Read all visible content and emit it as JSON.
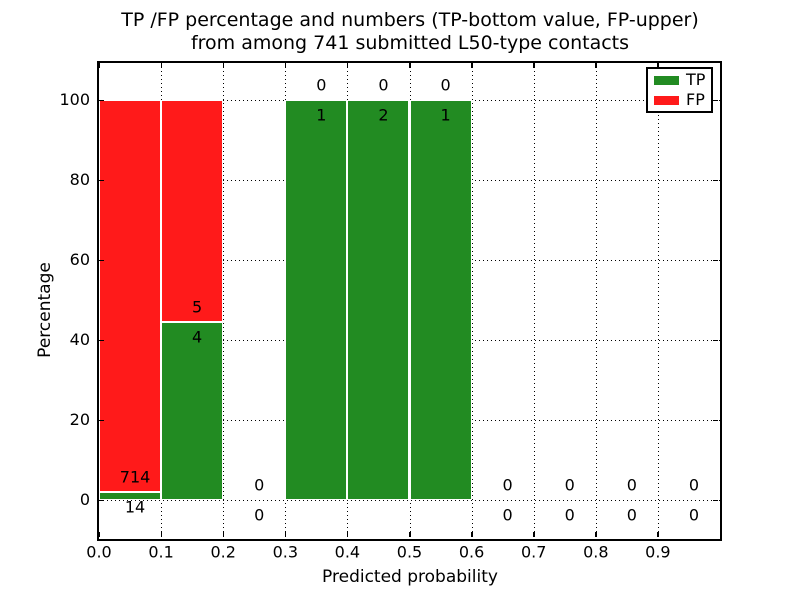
{
  "chart_data": {
    "type": "bar",
    "stacked": true,
    "title_line1": "TP /FP percentage and numbers (TP-bottom value, FP-upper)",
    "title_line2": "from among 741 submitted L50-type contacts",
    "xlabel": "Predicted probability",
    "ylabel": "Percentage",
    "xlim": [
      0.0,
      1.0
    ],
    "ylim": [
      -9.5,
      109.25
    ],
    "xticks": [
      "0.0",
      "0.1",
      "0.2",
      "0.3",
      "0.4",
      "0.5",
      "0.6",
      "0.7",
      "0.8",
      "0.9"
    ],
    "yticks": [
      0,
      20,
      40,
      60,
      80,
      100
    ],
    "grid": "dotted",
    "legend_position": "upper right",
    "total_contacts": 741,
    "bins": [
      {
        "range": [
          0.0,
          0.1
        ],
        "tp": 14,
        "fp": 714,
        "tp_pct": 1.92,
        "fp_pct": 98.08
      },
      {
        "range": [
          0.1,
          0.2
        ],
        "tp": 4,
        "fp": 5,
        "tp_pct": 44.44,
        "fp_pct": 55.56
      },
      {
        "range": [
          0.2,
          0.3
        ],
        "tp": 0,
        "fp": 0,
        "tp_pct": 0,
        "fp_pct": 0
      },
      {
        "range": [
          0.3,
          0.4
        ],
        "tp": 1,
        "fp": 0,
        "tp_pct": 100,
        "fp_pct": 0
      },
      {
        "range": [
          0.4,
          0.5
        ],
        "tp": 2,
        "fp": 0,
        "tp_pct": 100,
        "fp_pct": 0
      },
      {
        "range": [
          0.5,
          0.6
        ],
        "tp": 1,
        "fp": 0,
        "tp_pct": 100,
        "fp_pct": 0
      },
      {
        "range": [
          0.6,
          0.7
        ],
        "tp": 0,
        "fp": 0,
        "tp_pct": 0,
        "fp_pct": 0
      },
      {
        "range": [
          0.7,
          0.8
        ],
        "tp": 0,
        "fp": 0,
        "tp_pct": 0,
        "fp_pct": 0
      },
      {
        "range": [
          0.8,
          0.9
        ],
        "tp": 0,
        "fp": 0,
        "tp_pct": 0,
        "fp_pct": 0
      },
      {
        "range": [
          0.9,
          1.0
        ],
        "tp": 0,
        "fp": 0,
        "tp_pct": 0,
        "fp_pct": 0
      }
    ],
    "legend": [
      {
        "label": "TP",
        "color": "#228b22"
      },
      {
        "label": "FP",
        "color": "#ff1a1a"
      }
    ],
    "colors": {
      "tp": "#228b22",
      "fp": "#ff1a1a",
      "bar_edge": "#ffffff",
      "grid": "#000000",
      "frame": "#000000",
      "background": "#ffffff"
    }
  }
}
